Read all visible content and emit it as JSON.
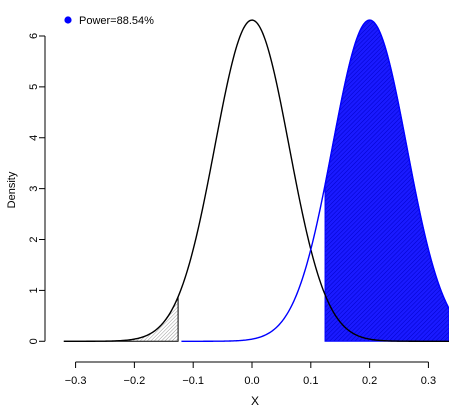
{
  "chart_data": {
    "type": "line",
    "title": "",
    "xlabel": "X",
    "ylabel": "Density",
    "xlim": [
      -0.335,
      0.335
    ],
    "ylim": [
      -0.25,
      6.55
    ],
    "x_ticks": [
      -0.3,
      -0.2,
      -0.1,
      0.0,
      0.1,
      0.2,
      0.3
    ],
    "x_tick_labels": [
      "−0.3",
      "−0.2",
      "−0.1",
      "0.0",
      "0.1",
      "0.2",
      "0.3"
    ],
    "y_ticks": [
      0,
      1,
      2,
      3,
      4,
      5,
      6
    ],
    "y_tick_labels": [
      "0",
      "1",
      "2",
      "3",
      "4",
      "5",
      "6"
    ],
    "legend": {
      "position": "top-left",
      "label": "Power=88.54%",
      "color": "#0000ff"
    },
    "series": [
      {
        "mean": 0.0,
        "sd": 0.0632,
        "x_range": [
          -0.32,
          0.335
        ],
        "color": "#000000",
        "shade_below": -0.124,
        "shade_color": "#bebebe"
      },
      {
        "mean": 0.2,
        "sd": 0.0632,
        "x_range": [
          -0.12,
          0.335
        ],
        "color": "#0000ff",
        "shade_above": 0.124,
        "shade_color": "#0000ff"
      }
    ],
    "critical_values": [
      -0.124,
      0.124
    ],
    "grid": false
  }
}
